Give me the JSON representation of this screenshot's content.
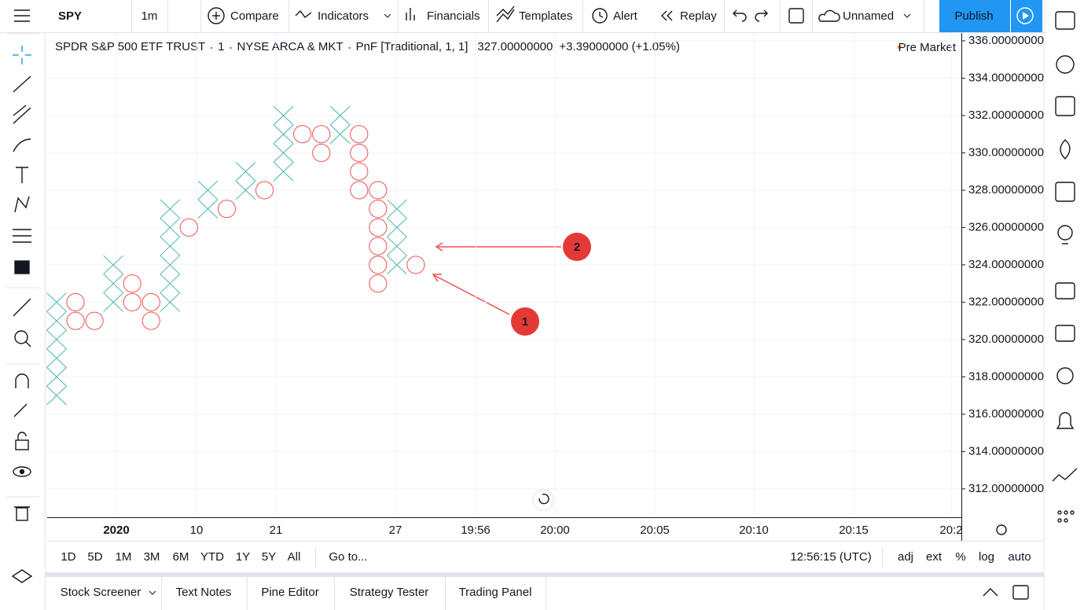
{
  "toolbar": {
    "symbol": "SPY",
    "interval": "1m",
    "buttons": [
      "Compare",
      "Indicators",
      "Financials",
      "Templates",
      "Alert",
      "Replay",
      "Unnamed"
    ],
    "publish": "Publish"
  },
  "legend": {
    "name": "SPDR S&P 500 ETF TRUST",
    "interval": "1",
    "exchange": "NYSE ARCA & MKT",
    "style": "PnF [Traditional, 1, 1]",
    "last": "327.00000000",
    "change": "+3.39000000 (+1.05%)",
    "session": "Pre Market"
  },
  "chart_data": {
    "type": "pnf",
    "box_size": 1,
    "colors": {
      "X": "#26a69a",
      "O": "#ef5350"
    },
    "columns": [
      {
        "type": "X",
        "low": 317,
        "high": 322
      },
      {
        "type": "O",
        "low": 321,
        "high": 322
      },
      {
        "type": "O",
        "low": 321,
        "high": 321
      },
      {
        "type": "X",
        "low": 322,
        "high": 324
      },
      {
        "type": "O",
        "low": 322,
        "high": 323
      },
      {
        "type": "O",
        "low": 321,
        "high": 322
      },
      {
        "type": "X",
        "low": 322,
        "high": 327
      },
      {
        "type": "O",
        "low": 326,
        "high": 326
      },
      {
        "type": "X",
        "low": 327,
        "high": 328
      },
      {
        "type": "O",
        "low": 327,
        "high": 327
      },
      {
        "type": "X",
        "low": 328,
        "high": 329
      },
      {
        "type": "O",
        "low": 328,
        "high": 328
      },
      {
        "type": "X",
        "low": 329,
        "high": 332
      },
      {
        "type": "O",
        "low": 331,
        "high": 331
      },
      {
        "type": "O",
        "low": 330,
        "high": 331
      },
      {
        "type": "X",
        "low": 331,
        "high": 332
      },
      {
        "type": "O",
        "low": 328,
        "high": 331
      },
      {
        "type": "O",
        "low": 323,
        "high": 328
      },
      {
        "type": "X",
        "low": 324,
        "high": 327
      },
      {
        "type": "O",
        "low": 324,
        "high": 324
      }
    ],
    "ylim": [
      310.48,
      336.42
    ],
    "yticks": [
      {
        "value": 312,
        "label": "312.00000000"
      },
      {
        "value": 314,
        "label": "314.00000000"
      },
      {
        "value": 316,
        "label": "316.00000000"
      },
      {
        "value": 318,
        "label": "318.00000000"
      },
      {
        "value": 320,
        "label": "320.00000000"
      },
      {
        "value": 322,
        "label": "322.00000000"
      },
      {
        "value": 324,
        "label": "324.00000000"
      },
      {
        "value": 326,
        "label": "326.00000000"
      },
      {
        "value": 328,
        "label": "328.00000000"
      },
      {
        "value": 330,
        "label": "330.00000000"
      },
      {
        "value": 332,
        "label": "332.00000000"
      },
      {
        "value": 334,
        "label": "334.00000000"
      },
      {
        "value": 336,
        "label": "336.00000000"
      }
    ],
    "x_labels": [
      "2020",
      "10",
      "21",
      "27",
      "19:56",
      "20:00",
      "20:05",
      "20:10",
      "20:15",
      "20:2"
    ],
    "grid": true,
    "annotations": [
      "1",
      "2"
    ]
  },
  "range_bar": {
    "ranges": [
      "1D",
      "5D",
      "1M",
      "3M",
      "6M",
      "YTD",
      "1Y",
      "5Y",
      "All"
    ],
    "goto": "Go to...",
    "time": "12:56:15 (UTC)",
    "options": [
      "adj",
      "ext",
      "%",
      "log",
      "auto"
    ]
  },
  "bottom_tabs": [
    "Stock Screener",
    "Text Notes",
    "Pine Editor",
    "Strategy Tester",
    "Trading Panel"
  ]
}
